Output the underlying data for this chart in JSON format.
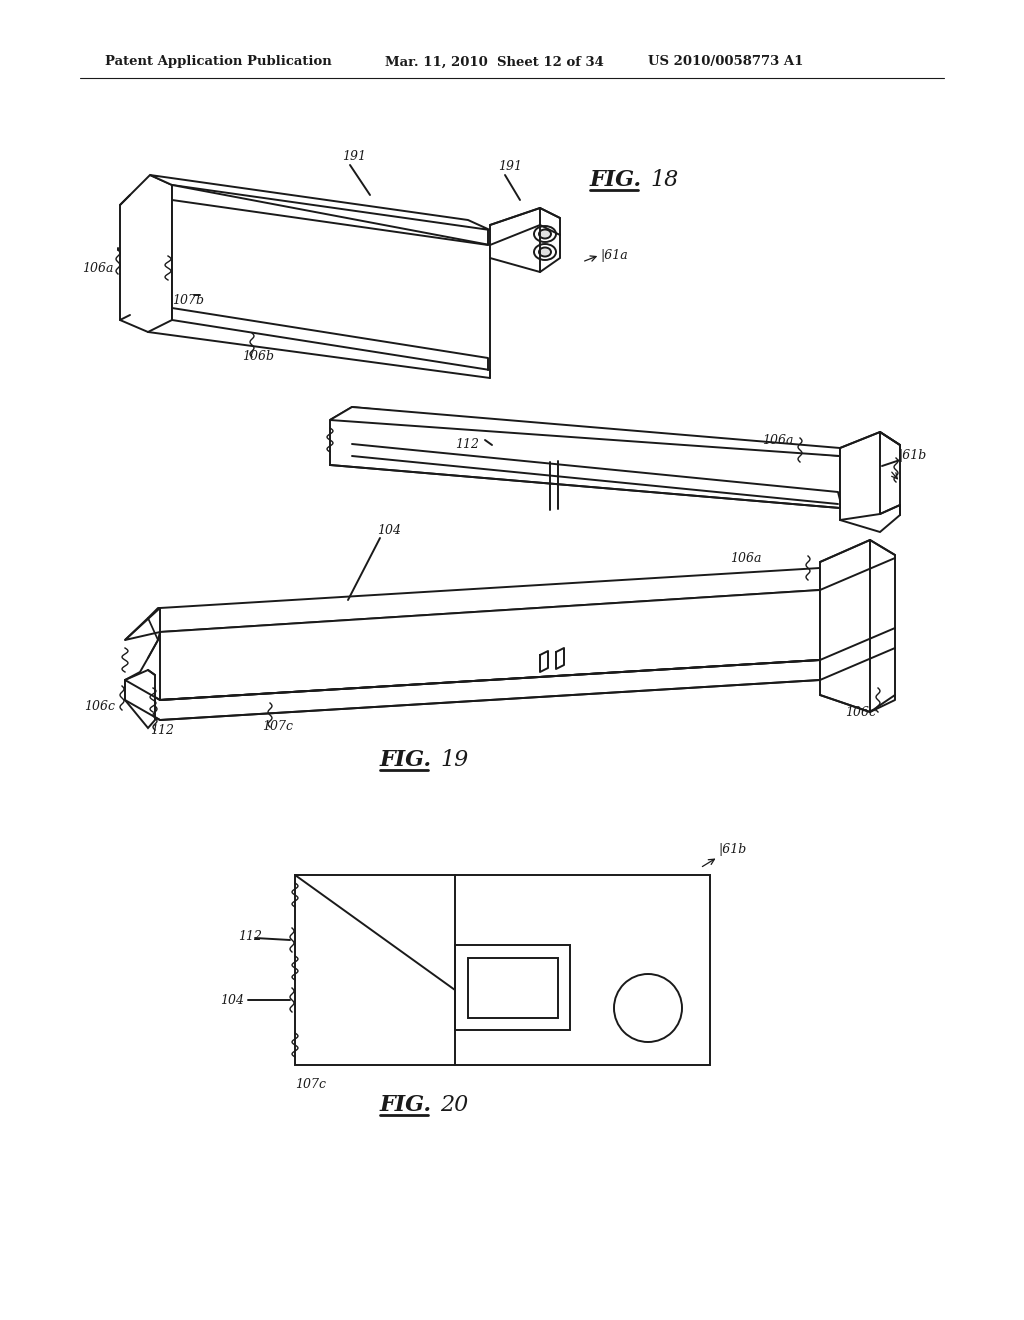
{
  "bg_color": "#ffffff",
  "header_left": "Patent Application Publication",
  "header_mid": "Mar. 11, 2010  Sheet 12 of 34",
  "header_right": "US 2010/0058773 A1",
  "line_color": "#1a1a1a",
  "line_width": 1.4,
  "page_width": 10.24,
  "page_height": 13.2
}
